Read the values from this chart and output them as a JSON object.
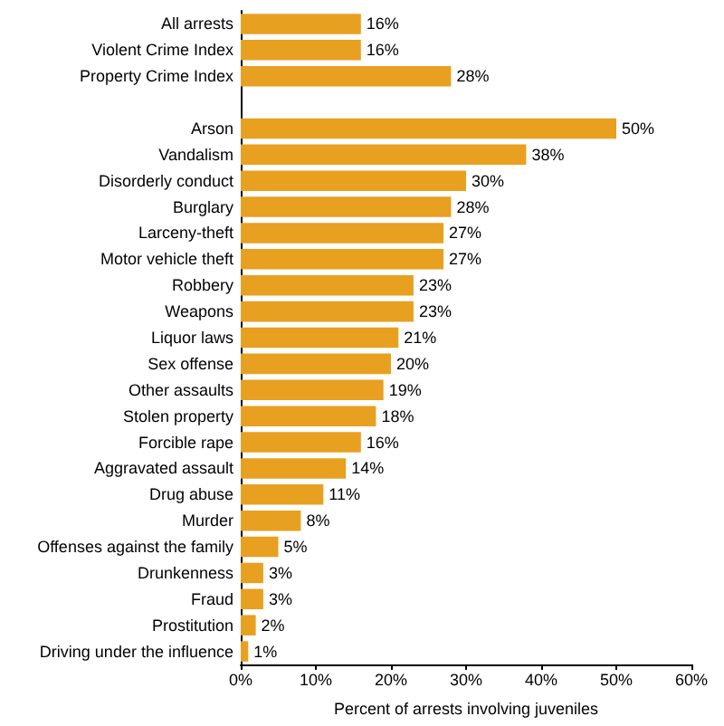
{
  "chart_data": {
    "type": "bar",
    "orientation": "horizontal",
    "xlabel": "Percent of arrests involving juveniles",
    "categories": [
      "All arrests",
      "Violent Crime Index",
      "Property Crime Index",
      null,
      "Arson",
      "Vandalism",
      "Disorderly conduct",
      "Burglary",
      "Larceny-theft",
      "Motor vehicle theft",
      "Robbery",
      "Weapons",
      "Liquor laws",
      "Sex offense",
      "Other assaults",
      "Stolen property",
      "Forcible rape",
      "Aggravated assault",
      "Drug abuse",
      "Murder",
      "Offenses against the family",
      "Drunkenness",
      "Fraud",
      "Prostitution",
      "Driving under the influence"
    ],
    "values": [
      16,
      16,
      28,
      null,
      50,
      38,
      30,
      28,
      27,
      27,
      23,
      23,
      21,
      20,
      19,
      18,
      16,
      14,
      11,
      8,
      5,
      3,
      3,
      2,
      1
    ],
    "value_labels": [
      "16%",
      "16%",
      "28%",
      null,
      "50%",
      "38%",
      "30%",
      "28%",
      "27%",
      "27%",
      "23%",
      "23%",
      "21%",
      "20%",
      "19%",
      "18%",
      "16%",
      "14%",
      "11%",
      "8%",
      "5%",
      "3%",
      "3%",
      "2%",
      "1%"
    ],
    "color": "#e8a020",
    "xlim": [
      0,
      60
    ],
    "xticks": [
      {
        "value": 0,
        "label": "0%"
      },
      {
        "value": 10,
        "label": "10%"
      },
      {
        "value": 20,
        "label": "20%"
      },
      {
        "value": 30,
        "label": "30%"
      },
      {
        "value": 40,
        "label": "40%"
      },
      {
        "value": 50,
        "label": "50%"
      },
      {
        "value": 60,
        "label": "60%"
      }
    ],
    "grid": false
  }
}
